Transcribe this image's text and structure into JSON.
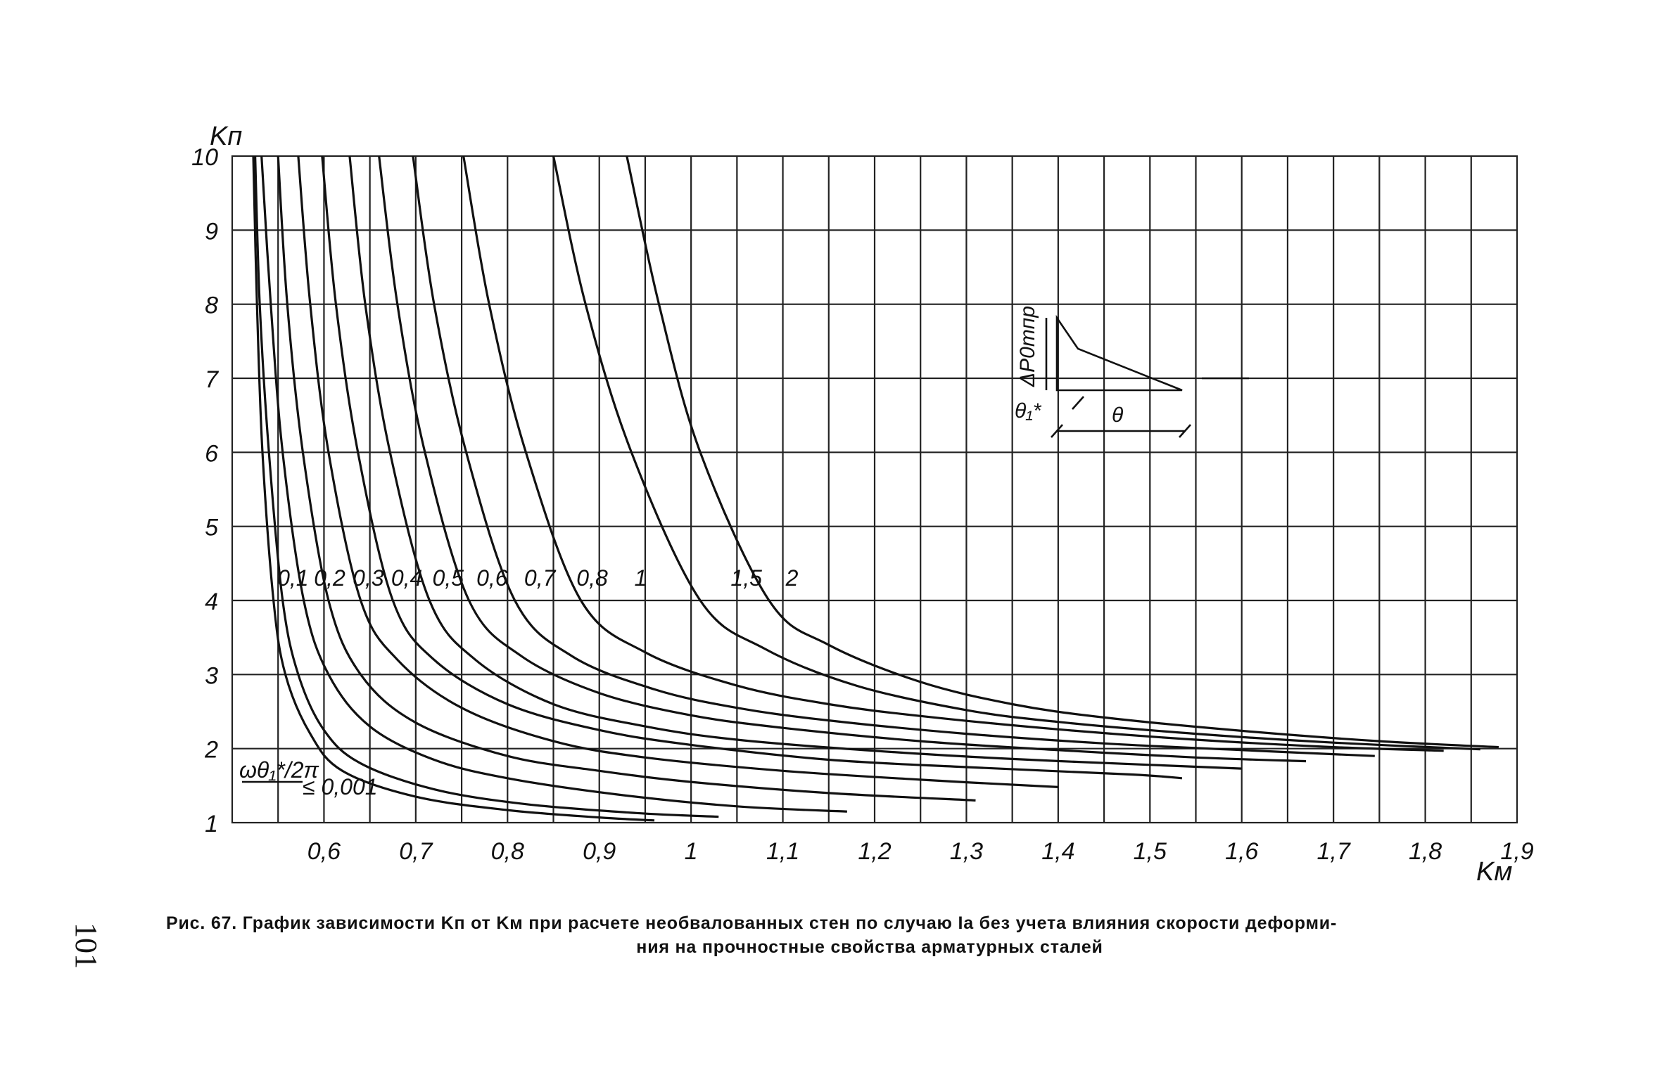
{
  "page_number": "101",
  "caption": {
    "line1": "Рис. 67. График зависимости Kп от Kм при расчете необвалованных стен по случаю Iа без учета влияния скорости деформи-",
    "line2": "ния на прочностные свойства арматурных сталей"
  },
  "chart_data": {
    "type": "line",
    "xlabel": "Kм",
    "ylabel": "Kп",
    "xlim": [
      0.5,
      1.9
    ],
    "ylim": [
      1,
      10
    ],
    "grid": true,
    "x_ticks": [
      "0,6",
      "0,7",
      "0,8",
      "0,9",
      "1",
      "1,1",
      "1,2",
      "1,3",
      "1,4",
      "1,5",
      "1,6",
      "1,7",
      "1,8",
      "1,9"
    ],
    "y_ticks": [
      "1",
      "2",
      "3",
      "4",
      "5",
      "6",
      "7",
      "8",
      "9",
      "10"
    ],
    "parameter_label": "ωθ₁*/2π",
    "parameter_first": "≤ 0,001",
    "series": [
      {
        "name": "≤ 0,001",
        "points": [
          [
            0.523,
            10
          ],
          [
            0.527,
            8
          ],
          [
            0.533,
            6
          ],
          [
            0.545,
            4
          ],
          [
            0.558,
            3
          ],
          [
            0.585,
            2.2
          ],
          [
            0.62,
            1.7
          ],
          [
            0.7,
            1.35
          ],
          [
            0.8,
            1.17
          ],
          [
            0.9,
            1.07
          ],
          [
            0.96,
            1.03
          ]
        ]
      },
      {
        "name": "0,1",
        "points": [
          [
            0.525,
            10
          ],
          [
            0.53,
            8
          ],
          [
            0.54,
            6
          ],
          [
            0.555,
            4
          ],
          [
            0.572,
            3
          ],
          [
            0.6,
            2.25
          ],
          [
            0.64,
            1.8
          ],
          [
            0.72,
            1.45
          ],
          [
            0.82,
            1.25
          ],
          [
            0.94,
            1.13
          ],
          [
            1.03,
            1.08
          ]
        ]
      },
      {
        "name": "0,2",
        "points": [
          [
            0.532,
            10
          ],
          [
            0.542,
            8
          ],
          [
            0.555,
            6
          ],
          [
            0.578,
            4
          ],
          [
            0.605,
            3
          ],
          [
            0.65,
            2.3
          ],
          [
            0.72,
            1.85
          ],
          [
            0.8,
            1.6
          ],
          [
            0.92,
            1.38
          ],
          [
            1.05,
            1.22
          ],
          [
            1.17,
            1.15
          ]
        ]
      },
      {
        "name": "0,3",
        "points": [
          [
            0.55,
            10
          ],
          [
            0.56,
            8
          ],
          [
            0.577,
            6
          ],
          [
            0.605,
            4
          ],
          [
            0.64,
            3
          ],
          [
            0.7,
            2.35
          ],
          [
            0.8,
            1.9
          ],
          [
            0.9,
            1.7
          ],
          [
            1.0,
            1.55
          ],
          [
            1.15,
            1.4
          ],
          [
            1.31,
            1.3
          ]
        ]
      },
      {
        "name": "0,4",
        "points": [
          [
            0.572,
            10
          ],
          [
            0.585,
            8
          ],
          [
            0.605,
            6
          ],
          [
            0.64,
            4
          ],
          [
            0.68,
            3.2
          ],
          [
            0.75,
            2.55
          ],
          [
            0.85,
            2.1
          ],
          [
            0.95,
            1.88
          ],
          [
            1.1,
            1.7
          ],
          [
            1.25,
            1.58
          ],
          [
            1.4,
            1.48
          ]
        ]
      },
      {
        "name": "0,5",
        "points": [
          [
            0.598,
            10
          ],
          [
            0.613,
            8
          ],
          [
            0.637,
            6
          ],
          [
            0.675,
            4
          ],
          [
            0.72,
            3.2
          ],
          [
            0.8,
            2.6
          ],
          [
            0.9,
            2.25
          ],
          [
            1.0,
            2.05
          ],
          [
            1.15,
            1.85
          ],
          [
            1.3,
            1.75
          ],
          [
            1.48,
            1.65
          ],
          [
            1.535,
            1.6
          ]
        ]
      },
      {
        "name": "0,6",
        "points": [
          [
            0.628,
            10
          ],
          [
            0.645,
            8
          ],
          [
            0.672,
            6
          ],
          [
            0.715,
            4
          ],
          [
            0.765,
            3.2
          ],
          [
            0.85,
            2.6
          ],
          [
            0.95,
            2.3
          ],
          [
            1.05,
            2.12
          ],
          [
            1.2,
            1.97
          ],
          [
            1.35,
            1.86
          ],
          [
            1.5,
            1.78
          ],
          [
            1.6,
            1.73
          ]
        ]
      },
      {
        "name": "0,7",
        "points": [
          [
            0.66,
            10
          ],
          [
            0.68,
            8
          ],
          [
            0.71,
            6
          ],
          [
            0.758,
            4
          ],
          [
            0.815,
            3.25
          ],
          [
            0.9,
            2.75
          ],
          [
            1.0,
            2.45
          ],
          [
            1.1,
            2.28
          ],
          [
            1.25,
            2.1
          ],
          [
            1.4,
            1.98
          ],
          [
            1.55,
            1.88
          ],
          [
            1.67,
            1.83
          ]
        ]
      },
      {
        "name": "0,8",
        "points": [
          [
            0.697,
            10
          ],
          [
            0.72,
            8
          ],
          [
            0.755,
            6
          ],
          [
            0.808,
            4
          ],
          [
            0.87,
            3.25
          ],
          [
            0.96,
            2.8
          ],
          [
            1.05,
            2.55
          ],
          [
            1.15,
            2.38
          ],
          [
            1.3,
            2.2
          ],
          [
            1.45,
            2.07
          ],
          [
            1.6,
            1.98
          ],
          [
            1.745,
            1.9
          ]
        ]
      },
      {
        "name": "1",
        "points": [
          [
            0.752,
            10
          ],
          [
            0.78,
            8
          ],
          [
            0.82,
            6
          ],
          [
            0.88,
            4
          ],
          [
            0.95,
            3.3
          ],
          [
            1.05,
            2.85
          ],
          [
            1.15,
            2.6
          ],
          [
            1.25,
            2.44
          ],
          [
            1.4,
            2.26
          ],
          [
            1.55,
            2.12
          ],
          [
            1.7,
            2.02
          ],
          [
            1.82,
            1.97
          ]
        ]
      },
      {
        "name": "1,5",
        "points": [
          [
            0.85,
            10
          ],
          [
            0.885,
            8
          ],
          [
            0.935,
            6
          ],
          [
            1.01,
            4
          ],
          [
            1.08,
            3.35
          ],
          [
            1.18,
            2.85
          ],
          [
            1.3,
            2.52
          ],
          [
            1.4,
            2.36
          ],
          [
            1.55,
            2.2
          ],
          [
            1.7,
            2.08
          ],
          [
            1.86,
            1.99
          ]
        ]
      },
      {
        "name": "2",
        "points": [
          [
            0.93,
            10
          ],
          [
            0.965,
            8
          ],
          [
            1.01,
            6
          ],
          [
            1.085,
            4
          ],
          [
            1.15,
            3.4
          ],
          [
            1.25,
            2.9
          ],
          [
            1.35,
            2.6
          ],
          [
            1.45,
            2.42
          ],
          [
            1.6,
            2.24
          ],
          [
            1.75,
            2.1
          ],
          [
            1.88,
            2.02
          ]
        ]
      }
    ],
    "curve_labels": [
      "0,1",
      "0,2",
      "0,3",
      "0,4",
      "0,5",
      "0,6",
      "0,7",
      "0,8",
      "1",
      "1,5",
      "2"
    ],
    "inset": {
      "ylabel": "ΔP0тпр",
      "theta1_label": "θ₁*",
      "theta_label": "θ"
    }
  }
}
